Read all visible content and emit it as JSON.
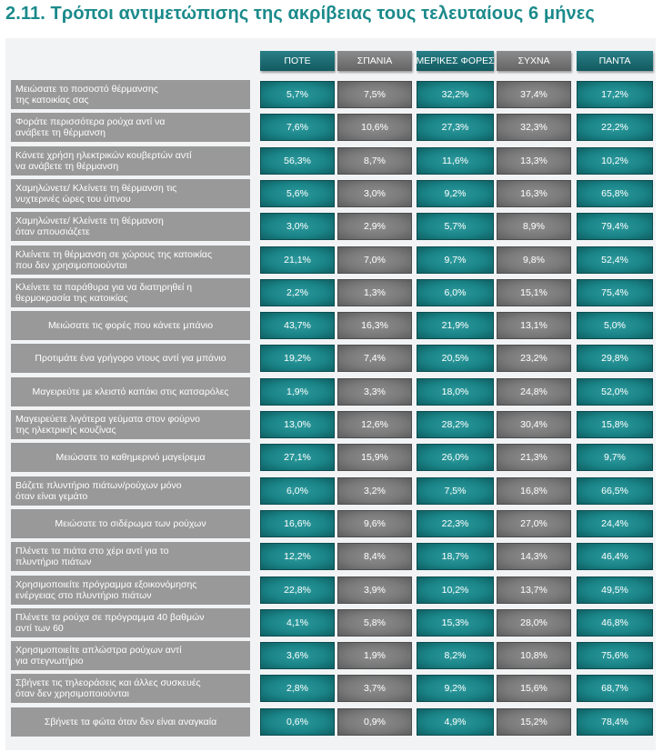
{
  "title": "2.11. Τρόποι αντιμετώπισης της ακρίβειας τους τελευταίους 6 μήνες",
  "colors": {
    "teal": "#1a8487",
    "gray": "#7a7a7a",
    "label": "#999999",
    "title": "#1b8a8b"
  },
  "chart_data": {
    "type": "table",
    "title": "2.11. Τρόποι αντιμετώπισης της ακρίβειας τους τελευταίους 6 μήνες",
    "columns": [
      "ΠΟΤΕ",
      "ΣΠΑΝΙΑ",
      "ΜΕΡΙΚΕΣ ΦΟΡΕΣ",
      "ΣΥΧΝΑ",
      "ΠΑΝΤΑ"
    ],
    "rows": [
      {
        "label": [
          "Μειώσατε το ποσοστό θέρμανσης",
          "της κατοικίας σας"
        ],
        "values": [
          "5,7%",
          "7,5%",
          "32,2%",
          "37,4%",
          "17,2%"
        ]
      },
      {
        "label": [
          "Φοράτε περισσότερα ρούχα αντί να",
          "ανάβετε τη θέρμανση"
        ],
        "values": [
          "7,6%",
          "10,6%",
          "27,3%",
          "32,3%",
          "22,2%"
        ]
      },
      {
        "label": [
          "Κάνετε χρήση ηλεκτρικών κουβερτών αντί",
          "να ανάβετε τη θέρμανση"
        ],
        "values": [
          "56,3%",
          "8,7%",
          "11,6%",
          "13,3%",
          "10,2%"
        ]
      },
      {
        "label": [
          "Χαμηλώνετε/ Κλείνετε τη θέρμανση τις",
          "νυχτερινές ώρες του ύπνου"
        ],
        "values": [
          "5,6%",
          "3,0%",
          "9,2%",
          "16,3%",
          "65,8%"
        ]
      },
      {
        "label": [
          "Χαμηλώνετε/ Κλείνετε τη θέρμανση",
          "όταν απουσιάζετε"
        ],
        "values": [
          "3,0%",
          "2,9%",
          "5,7%",
          "8,9%",
          "79,4%"
        ]
      },
      {
        "label": [
          "Κλείνετε τη θέρμανση σε χώρους της κατοικίας",
          "που δεν χρησιμοποιούνται"
        ],
        "values": [
          "21,1%",
          "7,0%",
          "9,7%",
          "9,8%",
          "52,4%"
        ]
      },
      {
        "label": [
          "Κλείνετε τα παράθυρα για να διατηρηθεί η",
          "θερμοκρασία της κατοικίας"
        ],
        "values": [
          "2,2%",
          "1,3%",
          "6,0%",
          "15,1%",
          "75,4%"
        ]
      },
      {
        "label": [
          "Μειώσατε τις φορές που κάνετε μπάνιο"
        ],
        "values": [
          "43,7%",
          "16,3%",
          "21,9%",
          "13,1%",
          "5,0%"
        ]
      },
      {
        "label": [
          "Προτιμάτε ένα γρήγορο ντους αντί για μπάνιο"
        ],
        "values": [
          "19,2%",
          "7,4%",
          "20,5%",
          "23,2%",
          "29,8%"
        ]
      },
      {
        "label": [
          "Μαγειρεύτε με κλειστό καπάκι στις κατσαρόλες"
        ],
        "values": [
          "1,9%",
          "3,3%",
          "18,0%",
          "24,8%",
          "52,0%"
        ]
      },
      {
        "label": [
          "Μαγειρεύετε λιγότερα γεύματα στον φούρνο",
          "της ηλεκτρικής κουζίνας"
        ],
        "values": [
          "13,0%",
          "12,6%",
          "28,2%",
          "30,4%",
          "15,8%"
        ]
      },
      {
        "label": [
          "Μειώσατε το καθημερινό μαγείρεμα"
        ],
        "values": [
          "27,1%",
          "15,9%",
          "26,0%",
          "21,3%",
          "9,7%"
        ]
      },
      {
        "label": [
          "Βάζετε πλυντήριο πιάτων/ρούχων μόνο",
          "όταν είναι γεμάτο"
        ],
        "values": [
          "6,0%",
          "3,2%",
          "7,5%",
          "16,8%",
          "66,5%"
        ]
      },
      {
        "label": [
          "Μειώσατε το σιδέρωμα των ρούχων"
        ],
        "values": [
          "16,6%",
          "9,6%",
          "22,3%",
          "27,0%",
          "24,4%"
        ]
      },
      {
        "label": [
          "Πλένετε τα πιάτα στο χέρι αντί για το",
          "πλυντήριο πιάτων"
        ],
        "values": [
          "12,2%",
          "8,4%",
          "18,7%",
          "14,3%",
          "46,4%"
        ]
      },
      {
        "label": [
          "Χρησιμοποιείτε πρόγραμμα εξοικονόμησης",
          "ενέργειας στο πλυντήριο πιάτων"
        ],
        "values": [
          "22,8%",
          "3,9%",
          "10,2%",
          "13,7%",
          "49,5%"
        ]
      },
      {
        "label": [
          "Πλένετε τα ρούχα σε πρόγραμμα 40 βαθμών",
          "αντί των 60"
        ],
        "values": [
          "4,1%",
          "5,8%",
          "15,3%",
          "28,0%",
          "46,8%"
        ]
      },
      {
        "label": [
          "Χρησιμοποιείτε απλώστρα ρούχων αντί",
          "για στεγνωτήριο"
        ],
        "values": [
          "3,6%",
          "1,9%",
          "8,2%",
          "10,8%",
          "75,6%"
        ]
      },
      {
        "label": [
          "Σβήνετε τις τηλεοράσεις και άλλες συσκευές",
          "όταν δεν χρησιμοποιούνται"
        ],
        "values": [
          "2,8%",
          "3,7%",
          "9,2%",
          "15,6%",
          "68,7%"
        ]
      },
      {
        "label": [
          "Σβήνετε τα φώτα όταν δεν είναι αναγκαία"
        ],
        "values": [
          "0,6%",
          "0,9%",
          "4,9%",
          "15,2%",
          "78,4%"
        ]
      }
    ]
  }
}
